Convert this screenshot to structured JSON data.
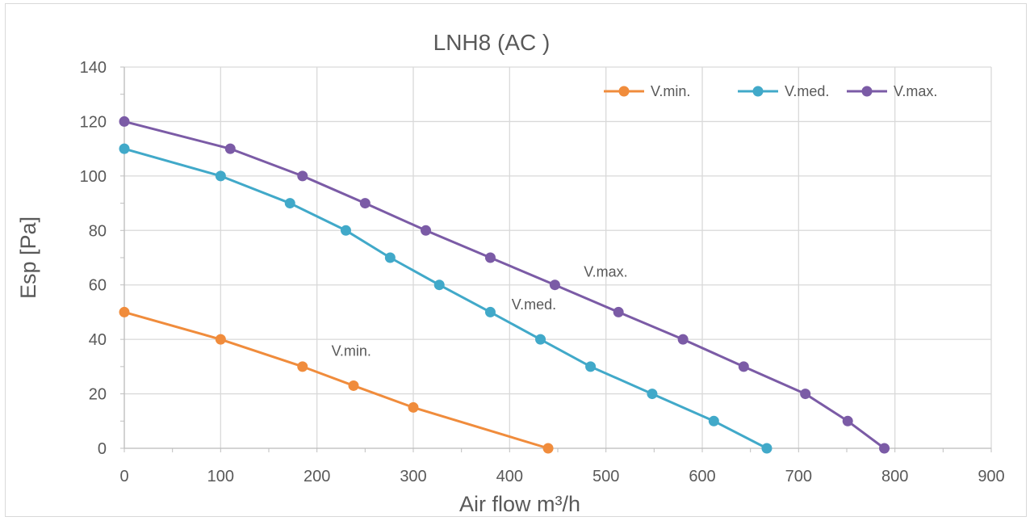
{
  "chart_data": {
    "type": "line",
    "title": "LNH8 (AC )",
    "xlabel": "Air flow m³/h",
    "ylabel": "Esp [Pa]",
    "xlim": [
      0,
      900
    ],
    "ylim": [
      0,
      140
    ],
    "x_ticks": [
      0,
      100,
      200,
      300,
      400,
      500,
      600,
      700,
      800,
      900
    ],
    "y_ticks": [
      0,
      20,
      40,
      60,
      80,
      100,
      120,
      140
    ],
    "grid": true,
    "legend_position": "top-right",
    "series": [
      {
        "name": "V.min.",
        "color": "#f08c3c",
        "label": "V.min.",
        "label_at": [
          215,
          34
        ],
        "points": [
          [
            0,
            50
          ],
          [
            100,
            40
          ],
          [
            185,
            30
          ],
          [
            238,
            23
          ],
          [
            300,
            15
          ],
          [
            440,
            0
          ]
        ]
      },
      {
        "name": "V.med.",
        "color": "#41a9c9",
        "label": "V.med.",
        "label_at": [
          402,
          51
        ],
        "points": [
          [
            0,
            110
          ],
          [
            100,
            100
          ],
          [
            172,
            90
          ],
          [
            230,
            80
          ],
          [
            276,
            70
          ],
          [
            327,
            60
          ],
          [
            380,
            50
          ],
          [
            432,
            40
          ],
          [
            484,
            30
          ],
          [
            548,
            20
          ],
          [
            612,
            10
          ],
          [
            667,
            0
          ]
        ]
      },
      {
        "name": "V.max.",
        "color": "#7b5ba6",
        "label": "V.max.",
        "label_at": [
          477,
          63
        ],
        "points": [
          [
            0,
            120
          ],
          [
            110,
            110
          ],
          [
            185,
            100
          ],
          [
            250,
            90
          ],
          [
            313,
            80
          ],
          [
            380,
            70
          ],
          [
            447,
            60
          ],
          [
            513,
            50
          ],
          [
            580,
            40
          ],
          [
            643,
            30
          ],
          [
            707,
            20
          ],
          [
            751,
            10
          ],
          [
            789,
            0
          ]
        ]
      }
    ]
  }
}
